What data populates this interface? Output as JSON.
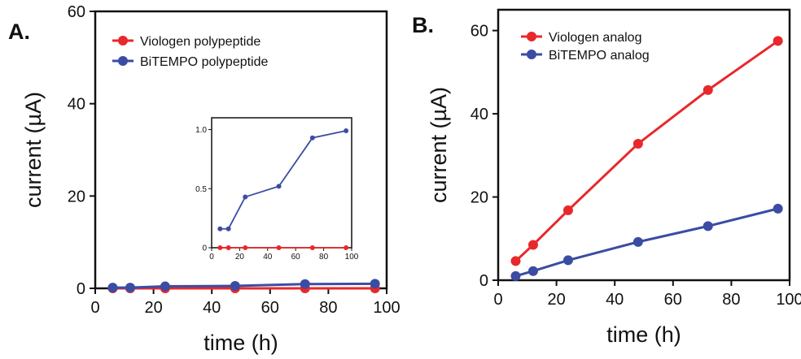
{
  "chart_data": [
    {
      "panel": "A.",
      "type": "line",
      "xlabel": "time (h)",
      "ylabel": "current (µA)",
      "xlim": [
        0,
        100
      ],
      "ylim": [
        0,
        60
      ],
      "xticks": [
        0,
        20,
        40,
        60,
        80,
        100
      ],
      "yticks": [
        0,
        20,
        40,
        60
      ],
      "legend_position": "top-left",
      "series": [
        {
          "name": "Viologen polypeptide",
          "color": "#e8282b",
          "x": [
            6,
            12,
            24,
            48,
            72,
            96
          ],
          "y": [
            0,
            0,
            0,
            0,
            0,
            0
          ]
        },
        {
          "name": "BiTEMPO polypeptide",
          "color": "#3b4ca3",
          "x": [
            6,
            12,
            24,
            48,
            72,
            96
          ],
          "y": [
            0.16,
            0.16,
            0.43,
            0.52,
            0.93,
            0.99
          ]
        }
      ],
      "inset": {
        "xlim": [
          0,
          100
        ],
        "ylim": [
          0,
          1.1
        ],
        "xticks": [
          0,
          20,
          40,
          60,
          80,
          100
        ],
        "yticks": [
          0,
          0.5,
          1.0
        ],
        "ytick_labels": [
          "0",
          "0.5",
          "1.0"
        ]
      }
    },
    {
      "panel": "B.",
      "type": "line",
      "xlabel": "time (h)",
      "ylabel": "current (µA)",
      "xlim": [
        0,
        100
      ],
      "ylim": [
        0,
        65
      ],
      "xticks": [
        0,
        20,
        40,
        60,
        80,
        100
      ],
      "yticks": [
        0,
        20,
        40,
        60
      ],
      "legend_position": "top-left",
      "series": [
        {
          "name": "Viologen analog",
          "color": "#e8282b",
          "x": [
            6,
            12,
            24,
            48,
            72,
            96
          ],
          "y": [
            4.6,
            8.5,
            16.8,
            32.8,
            45.7,
            57.5
          ]
        },
        {
          "name": "BiTEMPO analog",
          "color": "#3b4ca3",
          "x": [
            6,
            12,
            24,
            48,
            72,
            96
          ],
          "y": [
            1.0,
            2.2,
            4.8,
            9.2,
            13.0,
            17.2
          ]
        }
      ]
    }
  ]
}
